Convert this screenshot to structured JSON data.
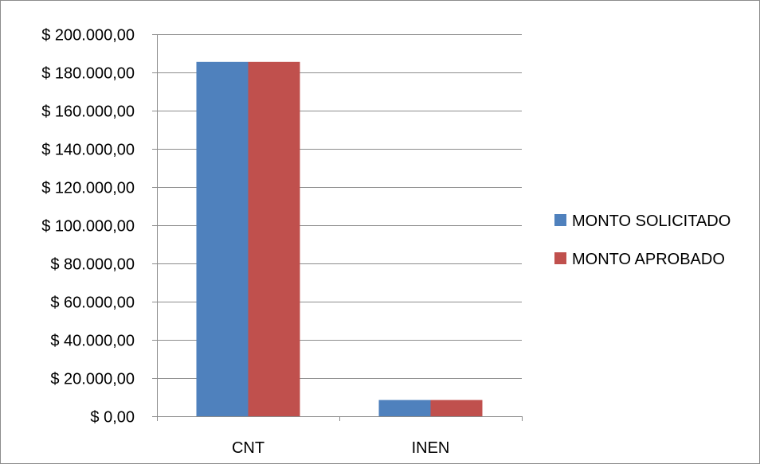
{
  "chart_data": {
    "type": "bar",
    "categories": [
      "CNT",
      "INEN"
    ],
    "series": [
      {
        "name": "MONTO SOLICITADO",
        "color": "#4f81bd",
        "values": [
          185500,
          8500
        ]
      },
      {
        "name": "MONTO APROBADO",
        "color": "#c0504d",
        "values": [
          185500,
          8500
        ]
      }
    ],
    "ylim": [
      0,
      200000
    ],
    "y_tick_values": [
      0,
      20000,
      40000,
      60000,
      80000,
      100000,
      120000,
      140000,
      160000,
      180000,
      200000
    ],
    "y_tick_labels": [
      "$ 0,00",
      "$ 20.000,00",
      "$ 40.000,00",
      "$ 60.000,00",
      "$ 80.000,00",
      "$ 100.000,00",
      "$ 120.000,00",
      "$ 140.000,00",
      "$ 160.000,00",
      "$ 180.000,00",
      "$ 200.000,00"
    ],
    "grid": true,
    "legend_position": "right",
    "gridline_color": "#8c8c8c"
  }
}
